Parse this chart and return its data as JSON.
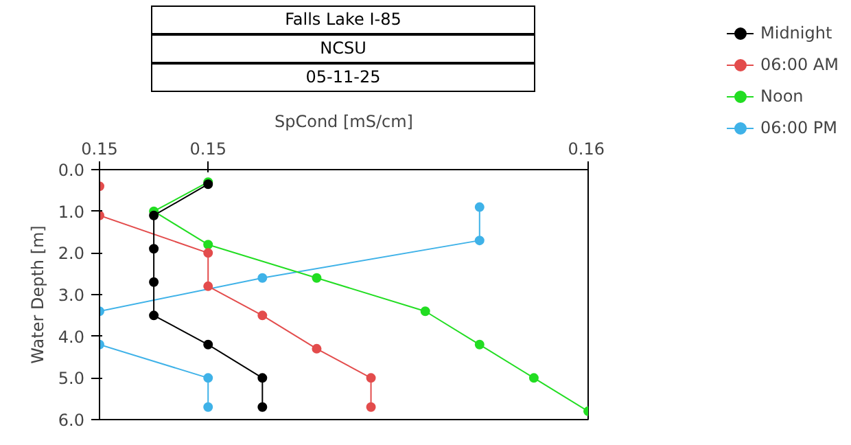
{
  "chart_data": {
    "type": "line",
    "title": "Falls Lake I-85",
    "subtitle": "NCSU",
    "annotations": [
      "05-11-25"
    ],
    "xlabel": "SpCond [mS/cm]",
    "ylabel": "Water Depth [m]",
    "xlim": [
      0.147,
      0.156
    ],
    "xticks": [
      {
        "value": 0.147,
        "label": "0.15"
      },
      {
        "value": 0.149,
        "label": "0.15"
      },
      {
        "value": 0.156,
        "label": "0.16"
      }
    ],
    "ylim": [
      6.0,
      0.0
    ],
    "yticks": [
      {
        "value": 0,
        "label": "0.0"
      },
      {
        "value": 1,
        "label": "1.0"
      },
      {
        "value": 2,
        "label": "2.0"
      },
      {
        "value": 3,
        "label": "3.0"
      },
      {
        "value": 4,
        "label": "4.0"
      },
      {
        "value": 5,
        "label": "5.0"
      },
      {
        "value": 6,
        "label": "6.0"
      }
    ],
    "marker": "circle",
    "line_style": "solid",
    "grid": false,
    "legend": "top right",
    "series": [
      {
        "name": "Midnight",
        "color": "#000000",
        "x": [
          0.149,
          0.148,
          0.148,
          0.148,
          0.148,
          0.149,
          0.15,
          0.15
        ],
        "values": [
          0.35,
          1.1,
          1.9,
          2.7,
          3.5,
          4.2,
          5.0,
          5.7
        ]
      },
      {
        "name": "06:00 AM",
        "color": "#e34c4c",
        "x": [
          0.147,
          0.147,
          0.149,
          0.149,
          0.15,
          0.151,
          0.152,
          0.152
        ],
        "values": [
          0.4,
          1.1,
          2.0,
          2.8,
          3.5,
          4.3,
          5.0,
          5.7
        ]
      },
      {
        "name": "Noon",
        "color": "#22dd22",
        "x": [
          0.149,
          0.148,
          0.149,
          0.151,
          0.153,
          0.154,
          0.155,
          0.156
        ],
        "values": [
          0.3,
          1.0,
          1.8,
          2.6,
          3.4,
          4.2,
          5.0,
          5.8
        ]
      },
      {
        "name": "06:00 PM",
        "color": "#3fb2e8",
        "x": [
          0.154,
          0.154,
          0.15,
          0.147,
          0.147,
          0.149,
          0.149
        ],
        "values": [
          0.9,
          1.7,
          2.6,
          3.4,
          4.2,
          5.0,
          5.7
        ]
      }
    ]
  }
}
